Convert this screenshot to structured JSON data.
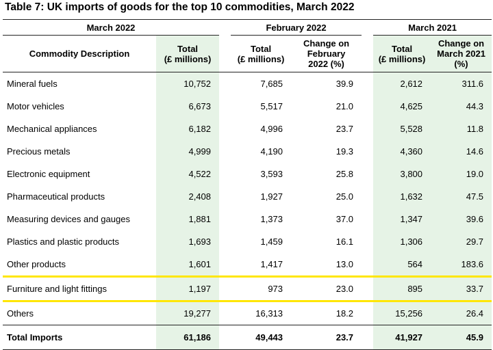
{
  "title": "Table 7: UK imports of goods for the top 10 commodities, March 2022",
  "periods": {
    "mar2022": "March 2022",
    "feb2022": "February 2022",
    "mar2021": "March 2021"
  },
  "headers": {
    "description": "Commodity Description",
    "total_l1": "Total",
    "total_l2": "(£ millions)",
    "feb_change_l1": "Change on",
    "feb_change_l2": "February",
    "feb_change_l3": "2022 (%)",
    "mar_change_l1": "Change on",
    "mar_change_l2": "March 2021",
    "mar_change_l3": "(%)"
  },
  "rows": [
    {
      "name": "Mineral fuels",
      "mar2022": "10,752",
      "feb_total": "7,685",
      "feb_change": "39.9",
      "mar2021_total": "2,612",
      "mar2021_change": "311.6"
    },
    {
      "name": "Motor vehicles",
      "mar2022": "6,673",
      "feb_total": "5,517",
      "feb_change": "21.0",
      "mar2021_total": "4,625",
      "mar2021_change": "44.3"
    },
    {
      "name": "Mechanical appliances",
      "mar2022": "6,182",
      "feb_total": "4,996",
      "feb_change": "23.7",
      "mar2021_total": "5,528",
      "mar2021_change": "11.8"
    },
    {
      "name": "Precious metals",
      "mar2022": "4,999",
      "feb_total": "4,190",
      "feb_change": "19.3",
      "mar2021_total": "4,360",
      "mar2021_change": "14.6"
    },
    {
      "name": "Electronic equipment",
      "mar2022": "4,522",
      "feb_total": "3,593",
      "feb_change": "25.8",
      "mar2021_total": "3,800",
      "mar2021_change": "19.0"
    },
    {
      "name": "Pharmaceutical products",
      "mar2022": "2,408",
      "feb_total": "1,927",
      "feb_change": "25.0",
      "mar2021_total": "1,632",
      "mar2021_change": "47.5"
    },
    {
      "name": "Measuring devices and gauges",
      "mar2022": "1,881",
      "feb_total": "1,373",
      "feb_change": "37.0",
      "mar2021_total": "1,347",
      "mar2021_change": "39.6"
    },
    {
      "name": "Plastics and plastic products",
      "mar2022": "1,693",
      "feb_total": "1,459",
      "feb_change": "16.1",
      "mar2021_total": "1,306",
      "mar2021_change": "29.7"
    },
    {
      "name": "Other products",
      "mar2022": "1,601",
      "feb_total": "1,417",
      "feb_change": "13.0",
      "mar2021_total": "564",
      "mar2021_change": "183.6"
    },
    {
      "name": "Furniture and light fittings",
      "mar2022": "1,197",
      "feb_total": "973",
      "feb_change": "23.0",
      "mar2021_total": "895",
      "mar2021_change": "33.7"
    },
    {
      "name": "Others",
      "mar2022": "19,277",
      "feb_total": "16,313",
      "feb_change": "18.2",
      "mar2021_total": "15,256",
      "mar2021_change": "26.4"
    }
  ],
  "total": {
    "name": "Total Imports",
    "mar2022": "61,186",
    "feb_total": "49,443",
    "feb_change": "23.7",
    "mar2021_total": "41,927",
    "mar2021_change": "45.9"
  },
  "colors": {
    "highlight": "#ffe600",
    "shade": "#e6f3e6"
  }
}
